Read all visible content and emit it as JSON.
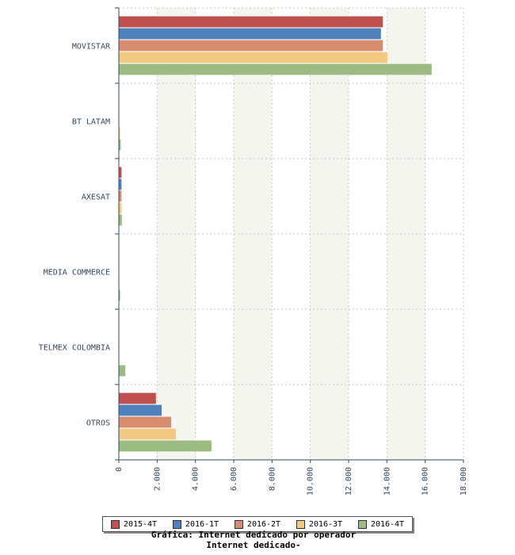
{
  "chart_data": {
    "type": "bar",
    "orientation": "horizontal",
    "categories": [
      "MOVISTAR",
      "BT LATAM",
      "AXESAT",
      "MEDIA COMMERCE",
      "TELMEX COLOMBIA",
      "OTROS"
    ],
    "series": [
      {
        "name": "2015-4T",
        "color": "#c0504d",
        "values": [
          13800,
          10,
          150,
          30,
          10,
          1950
        ]
      },
      {
        "name": "2016-1T",
        "color": "#4f81bd",
        "values": [
          13700,
          10,
          150,
          30,
          10,
          2250
        ]
      },
      {
        "name": "2016-2T",
        "color": "#d88c70",
        "values": [
          13800,
          10,
          150,
          30,
          20,
          2750
        ]
      },
      {
        "name": "2016-3T",
        "color": "#f1c982",
        "values": [
          14050,
          80,
          150,
          40,
          30,
          3000
        ]
      },
      {
        "name": "2016-4T",
        "color": "#9bbb83",
        "values": [
          16350,
          110,
          170,
          80,
          350,
          4850
        ]
      }
    ],
    "xlim": [
      0,
      18000
    ],
    "x_ticks": [
      "0",
      "2.000",
      "4.000",
      "6.000",
      "8.000",
      "10.000",
      "12.000",
      "14.000",
      "16.000",
      "18.000"
    ],
    "grid": true,
    "legend_position": "bottom"
  },
  "caption": {
    "line1": "Gráfica: Internet dedicado por operador",
    "line2": "Internet dedicado-"
  }
}
